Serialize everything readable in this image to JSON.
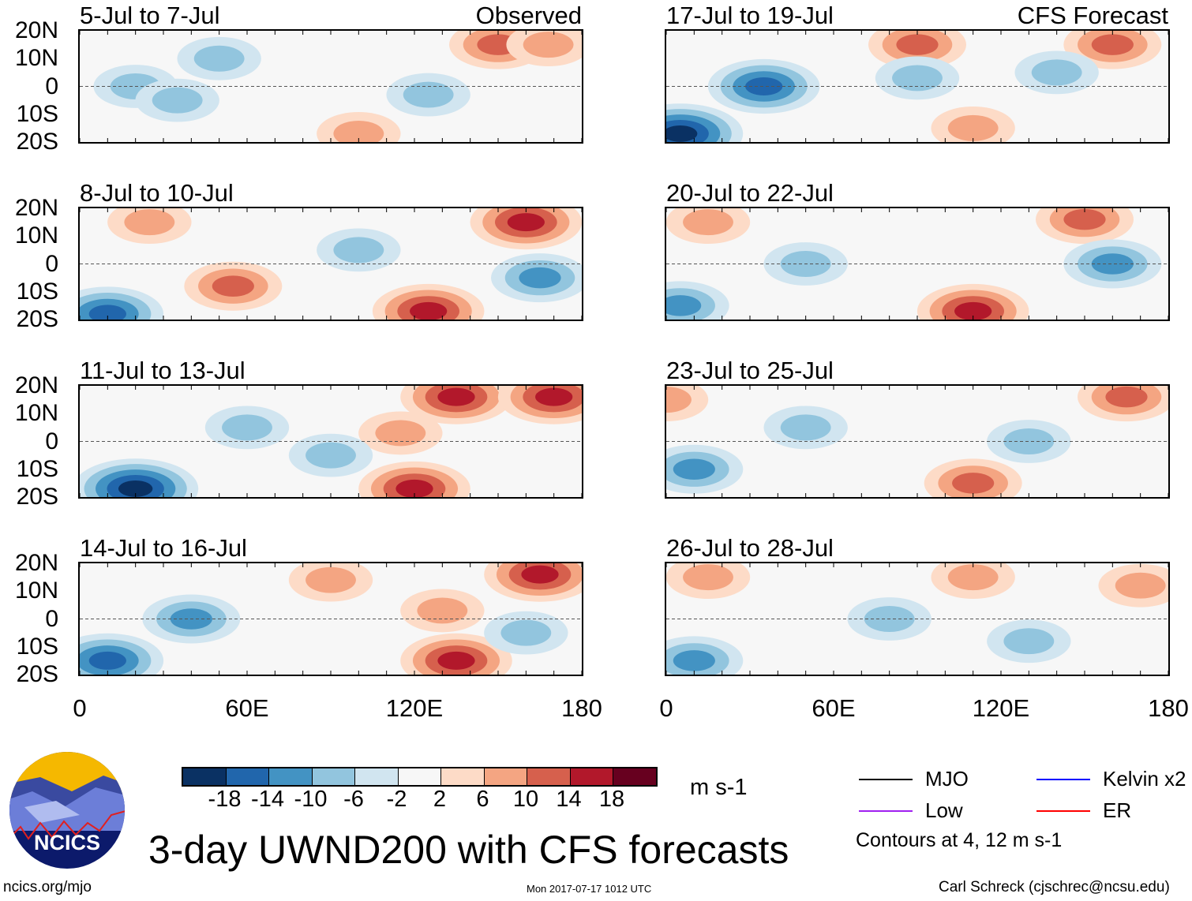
{
  "title": "3-day UWND200 with CFS forecasts",
  "logo_text": "NCICS",
  "footer": {
    "left": "ncics.org/mjo",
    "center": "Mon 2017-07-17 1012 UTC",
    "right": "Carl Schreck (cjschrec@ncsu.edu)"
  },
  "colorbar": {
    "colors": [
      "#0a3163",
      "#2166ac",
      "#4393c3",
      "#92c5de",
      "#d1e5f0",
      "#f7f7f7",
      "#fddbc7",
      "#f4a582",
      "#d6604d",
      "#b2182b",
      "#67001f"
    ],
    "ticks": [
      "-18",
      "-14",
      "-10",
      "-6",
      "-2",
      "2",
      "6",
      "10",
      "14",
      "18"
    ],
    "units": "m s-1"
  },
  "legend": {
    "items": [
      {
        "label": "MJO",
        "color": "#000000"
      },
      {
        "label": "Kelvin x2",
        "color": "#0000ff"
      },
      {
        "label": "Low",
        "color": "#a020f0"
      },
      {
        "label": "ER",
        "color": "#ff0000"
      }
    ],
    "note": "Contours at 4, 12 m s-1"
  },
  "lat_labels": [
    "20N",
    "10N",
    "0",
    "10S",
    "20S"
  ],
  "lon_labels": [
    "0",
    "60E",
    "120E",
    "180"
  ],
  "chart_data": {
    "type": "heatmap",
    "variable": "200-hPa zonal wind anomaly",
    "lon_range": [
      0,
      180
    ],
    "lat_range": [
      -20,
      20
    ],
    "panels": [
      {
        "title": "5-Jul to 7-Jul",
        "label": "Observed",
        "anomalies": [
          [
            150,
            15,
            10
          ],
          [
            168,
            15,
            6
          ],
          [
            20,
            0,
            -6
          ],
          [
            50,
            10,
            -6
          ],
          [
            125,
            -3,
            -6
          ],
          [
            100,
            -17,
            6
          ],
          [
            35,
            -5,
            -6
          ]
        ]
      },
      {
        "title": "8-Jul to 10-Jul",
        "label": "",
        "anomalies": [
          [
            160,
            15,
            14
          ],
          [
            55,
            -8,
            10
          ],
          [
            125,
            -17,
            14
          ],
          [
            10,
            -18,
            -14
          ],
          [
            165,
            -5,
            -10
          ],
          [
            100,
            5,
            -6
          ],
          [
            25,
            15,
            6
          ]
        ]
      },
      {
        "title": "11-Jul to 13-Jul",
        "label": "",
        "anomalies": [
          [
            135,
            16,
            14
          ],
          [
            170,
            16,
            14
          ],
          [
            120,
            -17,
            14
          ],
          [
            20,
            -17,
            -18
          ],
          [
            60,
            5,
            -6
          ],
          [
            115,
            3,
            6
          ],
          [
            90,
            -5,
            -6
          ]
        ]
      },
      {
        "title": "14-Jul to 16-Jul",
        "label": "",
        "anomalies": [
          [
            165,
            16,
            14
          ],
          [
            135,
            -15,
            14
          ],
          [
            90,
            14,
            6
          ],
          [
            40,
            0,
            -10
          ],
          [
            10,
            -15,
            -14
          ],
          [
            130,
            3,
            6
          ],
          [
            160,
            -5,
            -6
          ]
        ]
      },
      {
        "title": "17-Jul to 19-Jul",
        "label": "CFS Forecast",
        "anomalies": [
          [
            90,
            15,
            10
          ],
          [
            160,
            15,
            10
          ],
          [
            35,
            0,
            -14
          ],
          [
            5,
            -17,
            -18
          ],
          [
            140,
            5,
            -6
          ],
          [
            90,
            3,
            -6
          ],
          [
            110,
            -15,
            6
          ]
        ]
      },
      {
        "title": "20-Jul to 22-Jul",
        "label": "",
        "anomalies": [
          [
            15,
            15,
            6
          ],
          [
            110,
            -17,
            14
          ],
          [
            150,
            16,
            10
          ],
          [
            160,
            0,
            -10
          ],
          [
            50,
            0,
            -6
          ],
          [
            5,
            -15,
            -10
          ]
        ]
      },
      {
        "title": "23-Jul to 25-Jul",
        "label": "",
        "anomalies": [
          [
            165,
            16,
            10
          ],
          [
            110,
            -15,
            10
          ],
          [
            0,
            15,
            6
          ],
          [
            10,
            -10,
            -10
          ],
          [
            130,
            0,
            -6
          ],
          [
            50,
            5,
            -6
          ]
        ]
      },
      {
        "title": "26-Jul to 28-Jul",
        "label": "",
        "anomalies": [
          [
            170,
            12,
            6
          ],
          [
            15,
            15,
            6
          ],
          [
            80,
            0,
            -6
          ],
          [
            130,
            -8,
            -6
          ],
          [
            10,
            -15,
            -10
          ],
          [
            110,
            15,
            6
          ]
        ]
      }
    ]
  }
}
